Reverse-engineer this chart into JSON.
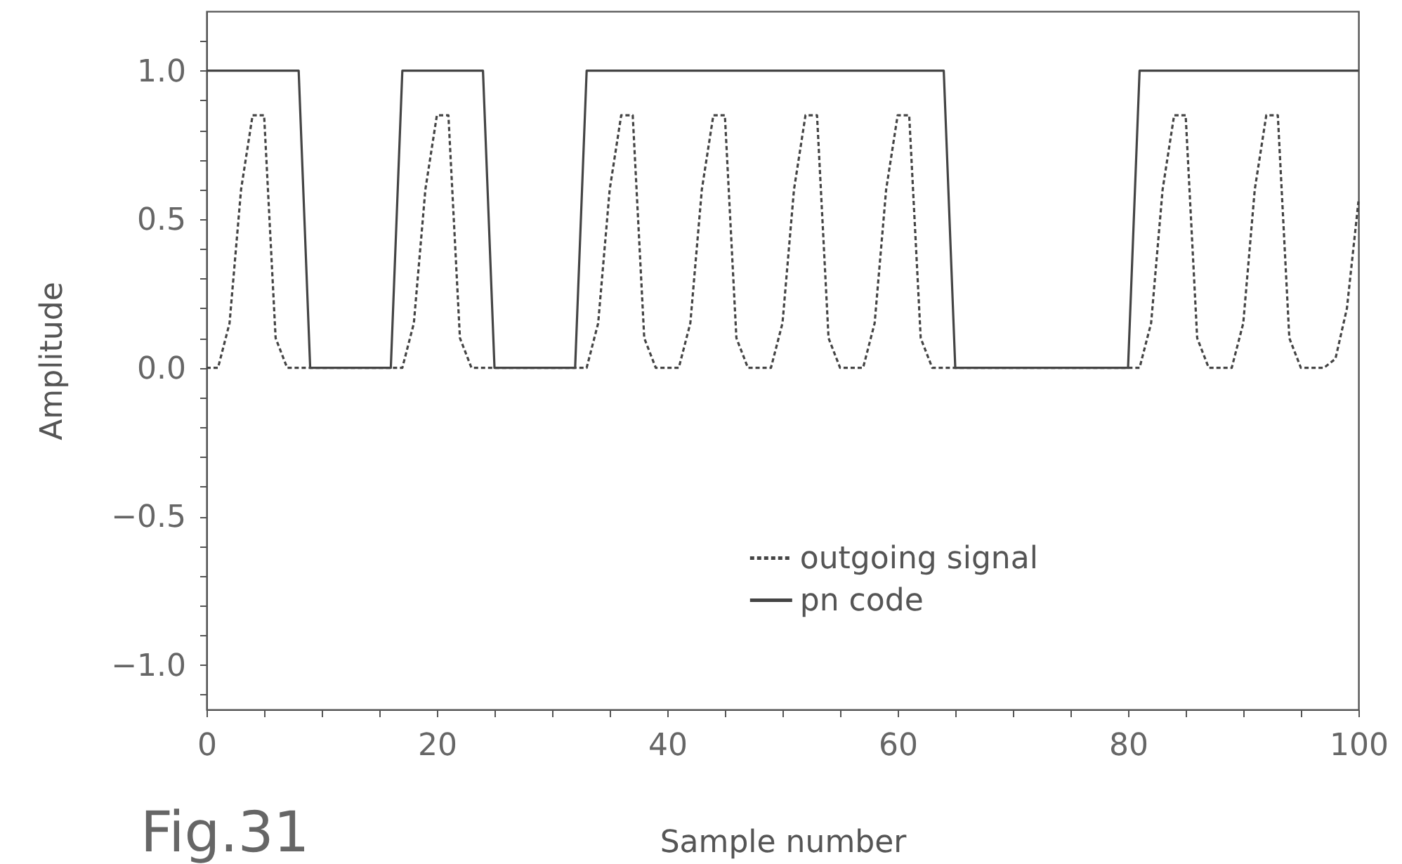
{
  "chart_data": {
    "type": "line",
    "xlabel": "Sample number",
    "ylabel": "Amplitude",
    "annotations": [
      "Fig.31"
    ],
    "xlim": [
      0,
      100
    ],
    "ylim": [
      -1.15,
      1.2
    ],
    "xticks": [
      0,
      {
        "value": 5,
        "label": null
      },
      20,
      {
        "value": 10,
        "label": null
      },
      {
        "value": 15,
        "label": null
      },
      {
        "value": 25,
        "label": null
      },
      {
        "value": 30,
        "label": null
      },
      {
        "value": 35,
        "label": null
      },
      40,
      {
        "value": 45,
        "label": null
      },
      {
        "value": 50,
        "label": null
      },
      {
        "value": 55,
        "label": null
      },
      60,
      {
        "value": 65,
        "label": null
      },
      {
        "value": 70,
        "label": null
      },
      {
        "value": 75,
        "label": null
      },
      80,
      {
        "value": 85,
        "label": null
      },
      {
        "value": 90,
        "label": null
      },
      {
        "value": 95,
        "label": null
      },
      100
    ],
    "yticks": [
      {
        "value": -1,
        "label": "−1.0"
      },
      {
        "value": -0.5,
        "label": "−0.5"
      },
      {
        "value": 0,
        "label": "0.0"
      },
      {
        "value": 0.5,
        "label": "0.5"
      },
      {
        "value": 1,
        "label": "1.0"
      },
      {
        "value": -1.1,
        "label": null
      },
      {
        "value": -0.9,
        "label": null
      },
      {
        "value": -0.8,
        "label": null
      },
      {
        "value": -0.7,
        "label": null
      },
      {
        "value": -0.6,
        "label": null
      },
      {
        "value": -0.4,
        "label": null
      },
      {
        "value": -0.3,
        "label": null
      },
      {
        "value": -0.2,
        "label": null
      },
      {
        "value": -0.1,
        "label": null
      },
      {
        "value": 0.1,
        "label": null
      },
      {
        "value": 0.2,
        "label": null
      },
      {
        "value": 0.3,
        "label": null
      },
      {
        "value": 0.4,
        "label": null
      },
      {
        "value": 0.6,
        "label": null
      },
      {
        "value": 0.7,
        "label": null
      },
      {
        "value": 0.8,
        "label": null
      },
      {
        "value": 0.9,
        "label": null
      },
      {
        "value": 1.1,
        "label": null
      }
    ],
    "grid": false,
    "legend": "right",
    "marker": "none",
    "series": [
      {
        "name": "outgoing signal",
        "color": "#444444",
        "line_style": "dotted",
        "x": [
          0,
          1,
          2,
          3,
          4,
          5,
          6,
          7,
          17,
          18,
          19,
          20,
          21,
          22,
          23,
          33,
          34,
          35,
          36,
          37,
          38,
          39,
          41,
          42,
          43,
          44,
          45,
          46,
          47,
          49,
          50,
          51,
          52,
          53,
          54,
          55,
          57,
          58,
          59,
          60,
          61,
          62,
          63,
          81,
          82,
          83,
          84,
          85,
          86,
          87,
          89,
          90,
          91,
          92,
          93,
          94,
          95,
          97,
          98,
          99,
          100
        ],
        "values": [
          0,
          0,
          0.15,
          0.6,
          0.85,
          0.85,
          0.1,
          0,
          0,
          0.15,
          0.6,
          0.85,
          0.85,
          0.1,
          0,
          0,
          0.15,
          0.6,
          0.85,
          0.85,
          0.1,
          0,
          0,
          0.15,
          0.6,
          0.85,
          0.85,
          0.1,
          0,
          0,
          0.15,
          0.6,
          0.85,
          0.85,
          0.1,
          0,
          0,
          0.15,
          0.6,
          0.85,
          0.85,
          0.1,
          0,
          0,
          0.15,
          0.6,
          0.85,
          0.85,
          0.1,
          0,
          0,
          0.15,
          0.6,
          0.85,
          0.85,
          0.1,
          0,
          0,
          0.03,
          0.2,
          0.56
        ]
      },
      {
        "name": "pn code",
        "color": "#444444",
        "line_style": "solid",
        "x": [
          0,
          8,
          9,
          16,
          17,
          24,
          25,
          32,
          33,
          64,
          65,
          80,
          81,
          100
        ],
        "values": [
          1,
          1,
          0,
          0,
          1,
          1,
          0,
          0,
          1,
          1,
          0,
          0,
          1,
          1
        ]
      }
    ]
  }
}
